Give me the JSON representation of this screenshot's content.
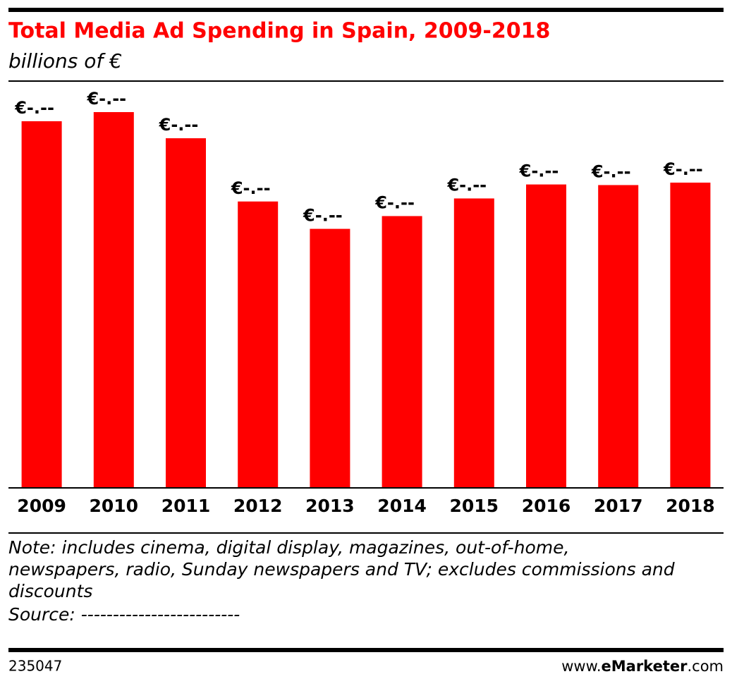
{
  "chart_data": {
    "type": "bar",
    "title": "Total Media Ad Spending in Spain, 2009-2018",
    "subtitle": "billions of €",
    "categories": [
      "2009",
      "2010",
      "2011",
      "2012",
      "2013",
      "2014",
      "2015",
      "2016",
      "2017",
      "2018"
    ],
    "values": [
      6.03,
      6.18,
      5.75,
      4.71,
      4.26,
      4.47,
      4.76,
      4.99,
      4.98,
      5.02
    ],
    "value_labels": [
      "€-.--",
      "€-.--",
      "€-.--",
      "€-.--",
      "€-.--",
      "€-.--",
      "€-.--",
      "€-.--",
      "€-.--",
      "€-.--"
    ],
    "color": "#ff0000",
    "note": [
      "Note: includes cinema, digital display, magazines, out-of-home,",
      "newspapers, radio, Sunday newspapers and TV; excludes commissions and",
      "discounts"
    ],
    "source": "Source: -------------------------"
  },
  "footer": {
    "id": "235047",
    "site": [
      "www.",
      "eMarketer",
      ".com"
    ]
  }
}
